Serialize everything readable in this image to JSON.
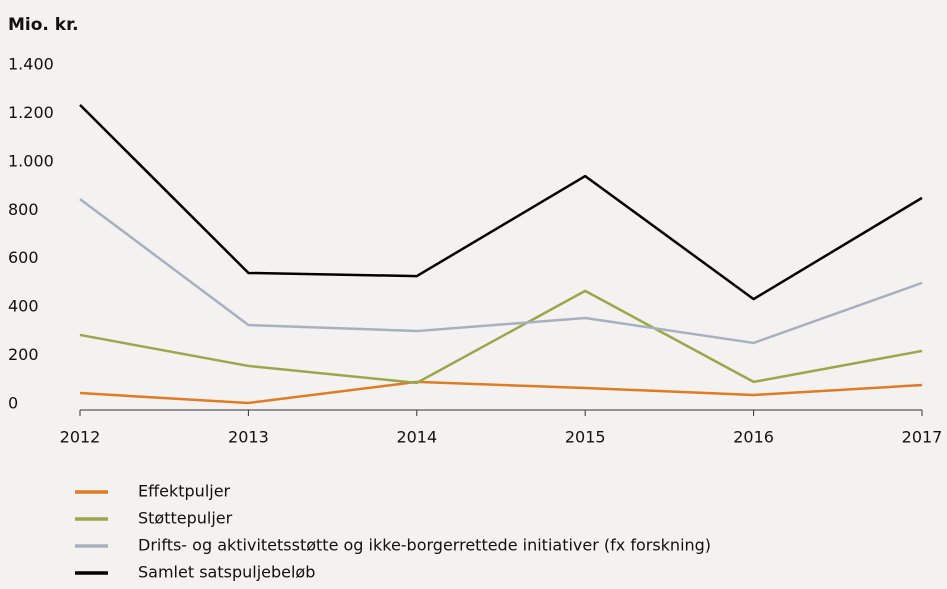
{
  "chart_data": {
    "type": "line",
    "title": "Mio. kr.",
    "x": [
      2012,
      2013,
      2014,
      2015,
      2016,
      2017
    ],
    "xlim": [
      2012,
      2017
    ],
    "xticks": [
      2012,
      2013,
      2014,
      2015,
      2016,
      2017
    ],
    "ylim": [
      0,
      1400
    ],
    "yticks": [
      0,
      200,
      400,
      600,
      800,
      {
        "value": 1000,
        "label": "1.000"
      },
      {
        "value": 1200,
        "label": "1.200"
      },
      {
        "value": 1400,
        "label": "1.400"
      }
    ],
    "grid": false,
    "legend": "bottom",
    "series": [
      {
        "name": "Effektpuljer",
        "color": "#e07b24",
        "values": [
          70,
          29,
          116,
          91,
          62,
          103
        ]
      },
      {
        "name": "Støttepuljer",
        "color": "#98a84a",
        "values": [
          310,
          182,
          112,
          492,
          116,
          244
        ]
      },
      {
        "name": "Drifts- og aktivitetsstøtte og ikke-borgerrettede initiativer (fx forskning)",
        "color": "#a9afbe",
        "values": [
          871,
          351,
          326,
          380,
          277,
          525
        ]
      },
      {
        "name": "Samlet satspuljebeløb",
        "color": "#000000",
        "values": [
          1260,
          566,
          553,
          966,
          458,
          876
        ]
      }
    ]
  }
}
